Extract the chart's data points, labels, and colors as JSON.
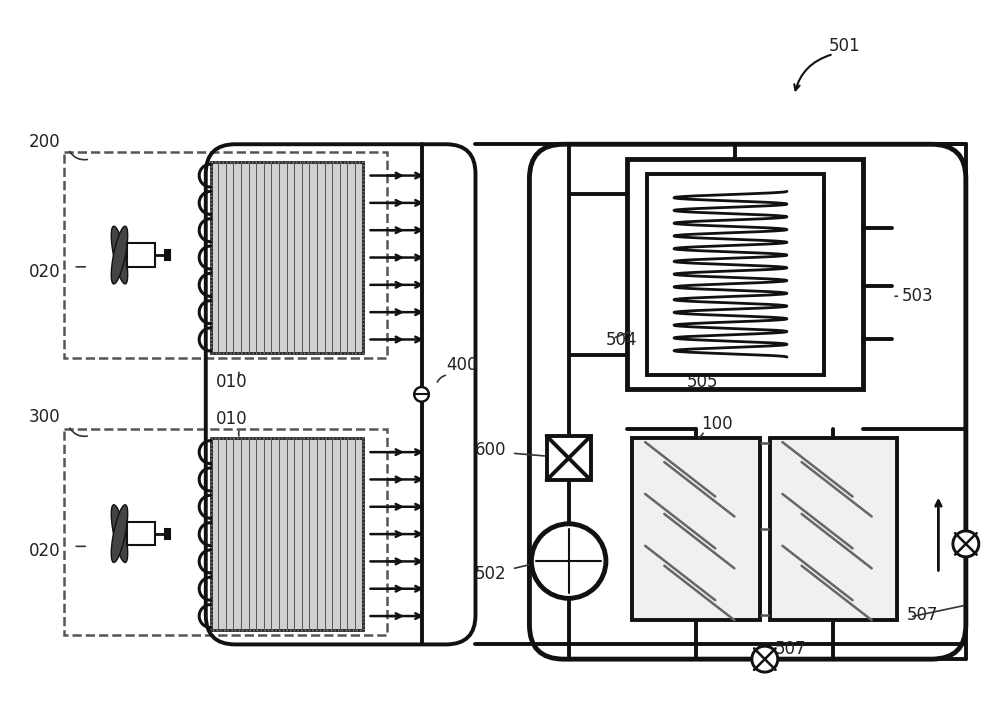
{
  "bg_color": "#ffffff",
  "lc": "#111111",
  "figsize": [
    10.0,
    7.21
  ],
  "dpi": 100,
  "lw_pipe": 2.8,
  "lw_thick": 3.5,
  "lw_dashed": 1.8,
  "lw_thin": 1.5,
  "label_fs": 12,
  "label_color": "#222222"
}
